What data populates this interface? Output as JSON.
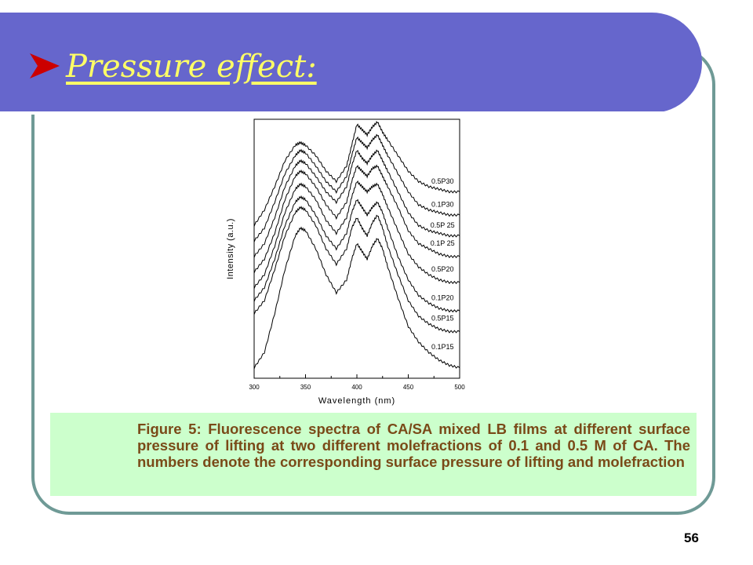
{
  "slide": {
    "title": "Pressure effect:",
    "caption": "Figure 5: Fluorescence spectra of CA/SA mixed LB films at different surface pressure of lifting at two different molefractions of 0.1 and 0.5 M of CA. The numbers denote the corresponding surface pressure of lifting and molefraction",
    "slide_number": "56",
    "colors": {
      "header": "#6666cc",
      "title": "#ffff66",
      "frame": "#6f9a96",
      "caption_bg": "#ccffcc",
      "caption_text": "#7a4a18",
      "bullet": "#cc0000"
    },
    "icons": {
      "bullet": "arrow-bullet-icon"
    }
  },
  "chart_data": {
    "type": "line",
    "xlabel": "Wavelength (nm)",
    "ylabel": "Intensity (a.u.)",
    "xlim": [
      300,
      500
    ],
    "x_ticks": [
      "300",
      "350",
      "400",
      "450",
      "500"
    ],
    "y_ticks_shown": false,
    "grid": false,
    "line_color": "#000000",
    "x": [
      300,
      310,
      320,
      330,
      340,
      345,
      350,
      360,
      370,
      380,
      390,
      395,
      400,
      405,
      410,
      415,
      420,
      425,
      430,
      440,
      450,
      460,
      470,
      480,
      490,
      500
    ],
    "series": [
      {
        "name": "0.5P30",
        "values": [
          0.59,
          0.65,
          0.74,
          0.84,
          0.9,
          0.91,
          0.9,
          0.86,
          0.8,
          0.76,
          0.82,
          0.9,
          0.98,
          0.96,
          0.94,
          0.97,
          0.99,
          0.95,
          0.92,
          0.86,
          0.8,
          0.76,
          0.74,
          0.73,
          0.72,
          0.72
        ]
      },
      {
        "name": "0.1P30",
        "values": [
          0.53,
          0.58,
          0.68,
          0.79,
          0.86,
          0.88,
          0.87,
          0.82,
          0.76,
          0.72,
          0.78,
          0.86,
          0.93,
          0.91,
          0.89,
          0.92,
          0.94,
          0.9,
          0.86,
          0.79,
          0.72,
          0.67,
          0.65,
          0.64,
          0.63,
          0.63
        ]
      },
      {
        "name": "0.5P 25",
        "values": [
          0.47,
          0.52,
          0.62,
          0.74,
          0.82,
          0.84,
          0.83,
          0.78,
          0.72,
          0.68,
          0.74,
          0.82,
          0.88,
          0.85,
          0.83,
          0.86,
          0.88,
          0.84,
          0.8,
          0.72,
          0.64,
          0.59,
          0.57,
          0.56,
          0.55,
          0.55
        ]
      },
      {
        "name": "0.1P 25",
        "values": [
          0.41,
          0.46,
          0.56,
          0.69,
          0.78,
          0.8,
          0.79,
          0.74,
          0.67,
          0.62,
          0.68,
          0.76,
          0.82,
          0.8,
          0.78,
          0.81,
          0.82,
          0.78,
          0.74,
          0.66,
          0.57,
          0.52,
          0.5,
          0.48,
          0.47,
          0.47
        ]
      },
      {
        "name": "0.5P20",
        "values": [
          0.35,
          0.4,
          0.51,
          0.64,
          0.73,
          0.75,
          0.74,
          0.69,
          0.61,
          0.56,
          0.62,
          0.7,
          0.76,
          0.74,
          0.72,
          0.74,
          0.75,
          0.71,
          0.66,
          0.57,
          0.48,
          0.43,
          0.4,
          0.38,
          0.37,
          0.37
        ]
      },
      {
        "name": "0.1P20",
        "values": [
          0.3,
          0.35,
          0.46,
          0.59,
          0.68,
          0.7,
          0.69,
          0.63,
          0.55,
          0.5,
          0.56,
          0.64,
          0.69,
          0.66,
          0.63,
          0.66,
          0.68,
          0.64,
          0.58,
          0.47,
          0.38,
          0.32,
          0.29,
          0.27,
          0.26,
          0.26
        ]
      },
      {
        "name": "0.5P15",
        "values": [
          0.25,
          0.3,
          0.42,
          0.55,
          0.64,
          0.66,
          0.65,
          0.59,
          0.5,
          0.44,
          0.5,
          0.58,
          0.62,
          0.58,
          0.55,
          0.6,
          0.63,
          0.58,
          0.51,
          0.4,
          0.3,
          0.24,
          0.21,
          0.19,
          0.18,
          0.18
        ]
      },
      {
        "name": "0.1P15",
        "values": [
          0.04,
          0.1,
          0.25,
          0.42,
          0.55,
          0.58,
          0.57,
          0.5,
          0.4,
          0.33,
          0.38,
          0.46,
          0.52,
          0.49,
          0.46,
          0.51,
          0.54,
          0.5,
          0.43,
          0.31,
          0.2,
          0.14,
          0.1,
          0.07,
          0.05,
          0.04
        ]
      }
    ]
  }
}
